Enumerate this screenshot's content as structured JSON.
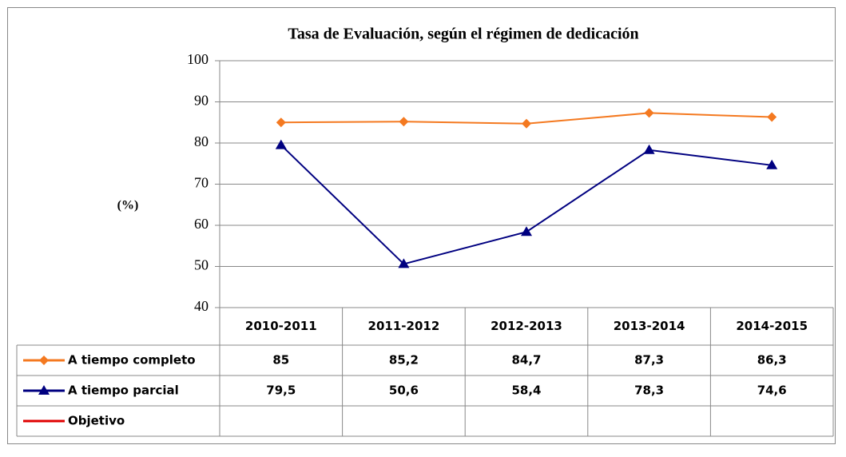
{
  "chart_data": {
    "type": "line",
    "title": "Tasa de Evaluación, según el régimen de dedicación",
    "y_label": "(%)",
    "categories": [
      "2010-2011",
      "2011-2012",
      "2012-2013",
      "2013-2014",
      "2014-2015"
    ],
    "series": [
      {
        "name": "A tiempo completo",
        "color": "#f47920",
        "marker": "diamond",
        "values": [
          85,
          85.2,
          84.7,
          87.3,
          86.3
        ],
        "value_labels": [
          "85",
          "85,2",
          "84,7",
          "87,3",
          "86,3"
        ]
      },
      {
        "name": "A tiempo parcial",
        "color": "#000080",
        "marker": "triangle",
        "values": [
          79.5,
          50.6,
          58.4,
          78.3,
          74.6
        ],
        "value_labels": [
          "79,5",
          "50,6",
          "58,4",
          "78,3",
          "74,6"
        ]
      },
      {
        "name": "Objetivo",
        "color": "#e00000",
        "marker": "none",
        "values": [
          null,
          null,
          null,
          null,
          null
        ]
      }
    ],
    "ylim": [
      40,
      100
    ],
    "yticks": [
      40,
      50,
      60,
      70,
      80,
      90,
      100
    ],
    "grid": true
  }
}
